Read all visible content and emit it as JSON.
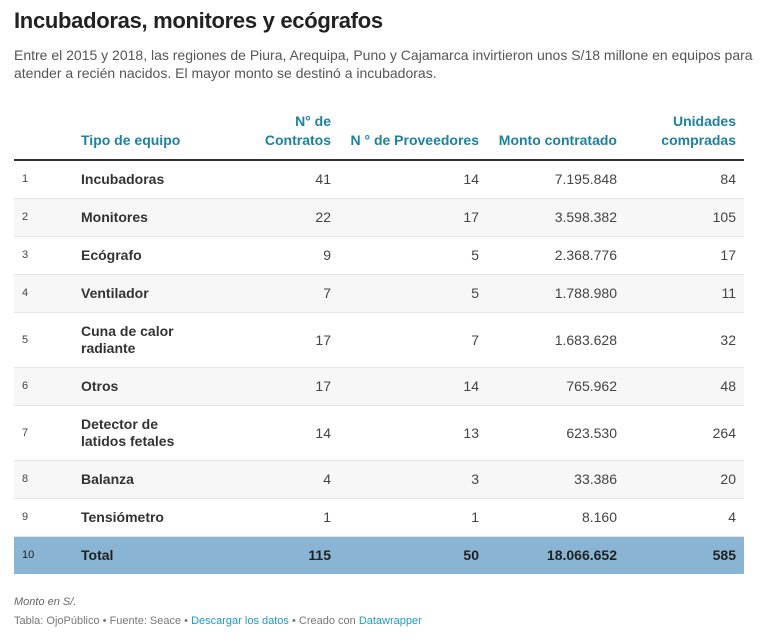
{
  "title": "Incubadoras, monitores y ecógrafos",
  "description": "Entre el 2015 y 2018, las regiones de Piura, Arequipa, Puno y Cajamarca invirtieron unos S/18 millone en equipos para atender a recién nacidos. El mayor monto se destinó a incubadoras.",
  "columns": [
    "Tipo de equipo",
    "N° de Contratos",
    "N ° de Proveedores",
    "Monto contratado",
    "Unidades compradas"
  ],
  "rows": [
    {
      "n": "1",
      "tipo": "Incubadoras",
      "contratos": "41",
      "proveedores": "14",
      "monto": "7.195.848",
      "unidades": "84"
    },
    {
      "n": "2",
      "tipo": "Monitores",
      "contratos": "22",
      "proveedores": "17",
      "monto": "3.598.382",
      "unidades": "105"
    },
    {
      "n": "3",
      "tipo": "Ecógrafo",
      "contratos": "9",
      "proveedores": "5",
      "monto": "2.368.776",
      "unidades": "17"
    },
    {
      "n": "4",
      "tipo": "Ventilador",
      "contratos": "7",
      "proveedores": "5",
      "monto": "1.788.980",
      "unidades": "11"
    },
    {
      "n": "5",
      "tipo": "Cuna de calor radiante",
      "contratos": "17",
      "proveedores": "7",
      "monto": "1.683.628",
      "unidades": "32"
    },
    {
      "n": "6",
      "tipo": "Otros",
      "contratos": "17",
      "proveedores": "14",
      "monto": "765.962",
      "unidades": "48"
    },
    {
      "n": "7",
      "tipo": "Detector de latidos fetales",
      "contratos": "14",
      "proveedores": "13",
      "monto": "623.530",
      "unidades": "264"
    },
    {
      "n": "8",
      "tipo": "Balanza",
      "contratos": "4",
      "proveedores": "3",
      "monto": "33.386",
      "unidades": "20"
    },
    {
      "n": "9",
      "tipo": "Tensiómetro",
      "contratos": "1",
      "proveedores": "1",
      "monto": "8.160",
      "unidades": "4"
    }
  ],
  "total": {
    "n": "10",
    "tipo": "Total",
    "contratos": "115",
    "proveedores": "50",
    "monto": "18.066.652",
    "unidades": "585"
  },
  "note": "Monto en S/.",
  "footer": {
    "source": "Tabla: OjoPúblico • Fuente: Seace • ",
    "download": "Descargar los datos",
    "created": " • Creado con ",
    "datawrapper": "Datawrapper"
  }
}
